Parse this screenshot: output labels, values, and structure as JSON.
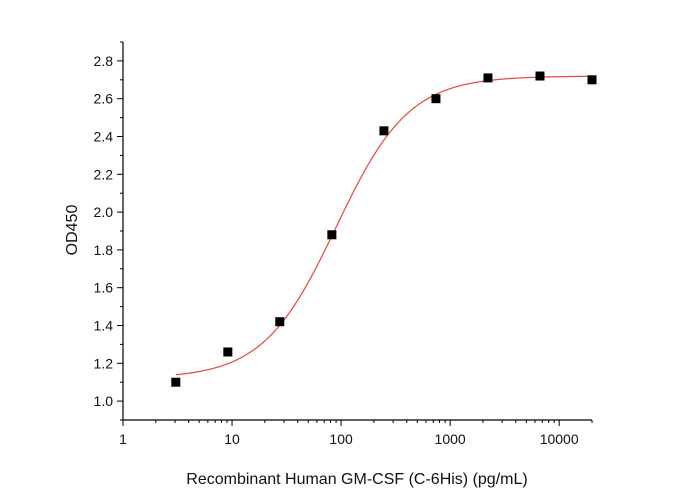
{
  "chart_data": {
    "type": "scatter",
    "title": "",
    "xlabel": "Recombinant Human GM-CSF (C-6His) (pg/mL)",
    "ylabel": "OD450",
    "x_scale": "log",
    "xlim": [
      1,
      20000
    ],
    "ylim": [
      0.9,
      2.9
    ],
    "x_ticks": [
      1,
      10,
      100,
      1000,
      10000
    ],
    "x_tick_labels": [
      "1",
      "10",
      "100",
      "1000",
      "10000"
    ],
    "y_ticks": [
      1.0,
      1.2,
      1.4,
      1.6,
      1.8,
      2.0,
      2.2,
      2.4,
      2.6,
      2.8
    ],
    "y_tick_labels": [
      "1.0",
      "1.2",
      "1.4",
      "1.6",
      "1.8",
      "2.0",
      "2.2",
      "2.4",
      "2.6",
      "2.8"
    ],
    "grid": false,
    "series": [
      {
        "type": "scatter",
        "marker": "square",
        "color": "#000000",
        "x": [
          3.05,
          9.15,
          27.4,
          82.3,
          247,
          741,
          2222,
          6667,
          20000
        ],
        "y": [
          1.1,
          1.26,
          1.42,
          1.88,
          2.43,
          2.6,
          2.71,
          2.72,
          2.7
        ]
      },
      {
        "type": "line",
        "fit": "4PL",
        "color": "#e8463c",
        "params": {
          "bottom": 1.12,
          "top": 2.72,
          "ec50": 90,
          "hill": 1.3
        },
        "x_range": [
          3.05,
          20000
        ]
      }
    ]
  }
}
